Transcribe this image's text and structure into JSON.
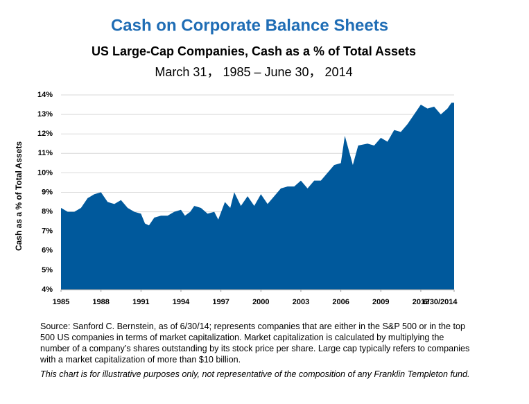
{
  "chart_data": {
    "type": "area",
    "title": "Cash on Corporate Balance Sheets",
    "subtitle": "US Large-Cap Companies, Cash as a % of Total Assets",
    "date_range": "March 31， 1985 – June 30， 2014",
    "y_label": "Cash as a % of Total Assets",
    "color": "#00599c",
    "x": [
      1985,
      1985.5,
      1986,
      1986.5,
      1987,
      1987.5,
      1988,
      1988.5,
      1989,
      1989.5,
      1990,
      1990.5,
      1991,
      1991.3,
      1991.6,
      1992,
      1992.5,
      1993,
      1993.5,
      1994,
      1994.3,
      1994.7,
      1995,
      1995.5,
      1996,
      1996.5,
      1996.8,
      1997.3,
      1997.7,
      1998,
      1998.5,
      1999,
      1999.5,
      2000,
      2000.5,
      2001,
      2001.5,
      2002,
      2002.5,
      2003,
      2003.5,
      2004,
      2004.5,
      2005,
      2005.5,
      2006,
      2006.3,
      2006.9,
      2007.3,
      2008,
      2008.5,
      2009,
      2009.5,
      2010,
      2010.5,
      2011,
      2011.5,
      2012,
      2012.5,
      2013,
      2013.5,
      2014,
      2014.3,
      2014.5
    ],
    "values": [
      8.2,
      8.0,
      8.0,
      8.2,
      8.7,
      8.9,
      9.0,
      8.5,
      8.4,
      8.6,
      8.2,
      8.0,
      7.9,
      7.4,
      7.3,
      7.7,
      7.8,
      7.8,
      8.0,
      8.1,
      7.8,
      8.0,
      8.3,
      8.2,
      7.9,
      8.0,
      7.6,
      8.5,
      8.2,
      9.0,
      8.3,
      8.8,
      8.3,
      8.9,
      8.4,
      8.8,
      9.2,
      9.3,
      9.3,
      9.6,
      9.2,
      9.6,
      9.6,
      10.0,
      10.4,
      10.5,
      11.9,
      10.4,
      11.4,
      11.5,
      11.4,
      11.8,
      11.6,
      12.2,
      12.1,
      12.5,
      13.0,
      13.5,
      13.3,
      13.4,
      13.0,
      13.3,
      13.6,
      13.6
    ],
    "xlim": [
      1985,
      2014.5
    ],
    "xticks": [
      1985,
      1988,
      1991,
      1994,
      1997,
      2000,
      2003,
      2006,
      2009,
      2012,
      {
        "value": 2014.5,
        "label": "6/30/2014"
      }
    ],
    "ylim": [
      4,
      14
    ],
    "yticks": [
      {
        "value": 4,
        "label": "4%"
      },
      {
        "value": 5,
        "label": "5%"
      },
      {
        "value": 6,
        "label": "6%"
      },
      {
        "value": 7,
        "label": "7%"
      },
      {
        "value": 8,
        "label": "8%"
      },
      {
        "value": 9,
        "label": "9%"
      },
      {
        "value": 10,
        "label": "10%"
      },
      {
        "value": 11,
        "label": "11%"
      },
      {
        "value": 12,
        "label": "12%"
      },
      {
        "value": 13,
        "label": "13%"
      },
      {
        "value": 14,
        "label": "14%"
      }
    ],
    "grid": true,
    "source": "Source: Sanford C. Bernstein, as of 6/30/14; represents companies that are either in the S&P 500 or in the top 500 US companies in terms of market capitalization. Market capitalization is calculated by multiplying the number of a company’s shares outstanding by its stock price per share. Large cap typically refers to companies with a market capitalization of more than $10 billion.",
    "note": "This chart is for illustrative purposes only, not representative of the composition of any Franklin Templeton fund."
  }
}
